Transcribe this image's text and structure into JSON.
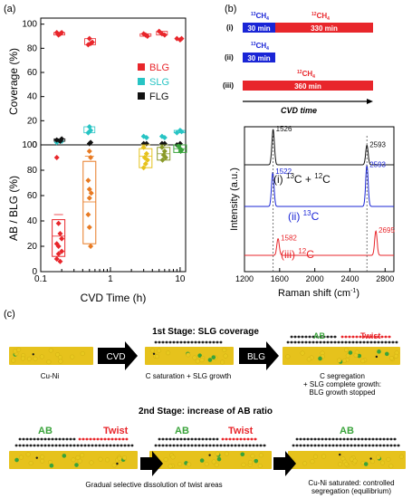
{
  "panel_labels": {
    "a": "(a)",
    "b": "(b)",
    "c": "(c)"
  },
  "colors": {
    "blg": "#e8262b",
    "slg": "#27c4c4",
    "flg": "#111111",
    "c13": "#1a25d6",
    "c12": "#e8262b",
    "gold": "#e6c21c",
    "green_dot": "#39a33a",
    "olive": "#8a9a2a"
  },
  "panel_a": {
    "xlabel": "CVD Time (h)",
    "ylabel_top": "Coverage (%)",
    "ylabel_bottom": "AB / BLG (%)",
    "legend": [
      {
        "label": "BLG",
        "color": "#e8262b"
      },
      {
        "label": "SLG",
        "color": "#27c4c4"
      },
      {
        "label": "FLG",
        "color": "#111111"
      }
    ],
    "xticks": [
      "0.1",
      "1",
      "10"
    ],
    "yticks_top": [
      "0",
      "20",
      "40",
      "60",
      "80",
      "100"
    ],
    "yticks_bottom": [
      "0",
      "20",
      "40",
      "60",
      "80",
      "100"
    ]
  },
  "panel_b": {
    "schedule": [
      {
        "row": "(i)",
        "segments": [
          {
            "label": "13CH4",
            "time": "30 min",
            "color": "#1a25d6"
          },
          {
            "label": "12CH4",
            "time": "330 min",
            "color": "#e8262b"
          }
        ]
      },
      {
        "row": "(ii)",
        "segments": [
          {
            "label": "13CH4",
            "time": "30 min",
            "color": "#1a25d6"
          }
        ]
      },
      {
        "row": "(iii)",
        "segments": [
          {
            "label": "12CH4",
            "time": "360 min",
            "color": "#e8262b"
          }
        ]
      }
    ],
    "arrow_label": "CVD time",
    "xlabel": "Raman shift (cm",
    "xlabel_sup": "-1",
    "xlabel_end": ")",
    "ylabel": "Intensity (a.u.)",
    "xticks": [
      "1200",
      "1600",
      "2000",
      "2400",
      "2800"
    ],
    "spectra": [
      {
        "label": "(i) ",
        "iso_a": "13",
        "mid": "C + ",
        "iso_b": "12",
        "tail": "C",
        "peaks": [
          "1526",
          "2593"
        ],
        "color": "#111111"
      },
      {
        "label": "(ii) ",
        "iso_a": "13",
        "mid": "C",
        "iso_b": "",
        "tail": "",
        "peaks": [
          "1522",
          "2593"
        ],
        "color": "#1a25d6"
      },
      {
        "label": "(iii) ",
        "iso_a": "12",
        "mid": "C",
        "iso_b": "",
        "tail": "",
        "peaks": [
          "1582",
          "2695"
        ],
        "color": "#e8262b"
      }
    ]
  },
  "panel_c": {
    "stage1_title": "1st Stage: SLG coverage",
    "stage2_title": "2nd Stage: increase of AB ratio",
    "arrow_cvd": "CVD",
    "arrow_blg": "BLG",
    "label_cuni": "Cu-Ni",
    "label_csat": "C saturation + SLG growth",
    "label_seg1": "C segregation",
    "label_seg2": "+ SLG complete growth:",
    "label_seg3": "BLG growth stopped",
    "ab": "AB",
    "twist": "Twist",
    "label_dissolve": "Gradual selective dissolution of twist areas",
    "label_sat1": "Cu-Ni saturated: controlled",
    "label_sat2": "segregation (equilibrium)"
  },
  "chart_data": [
    {
      "type": "scatter",
      "title": "",
      "xlabel": "CVD Time (h)",
      "ylabel": "Coverage (%)",
      "xscale": "log",
      "xlim": [
        0.1,
        12
      ],
      "ylim": [
        0,
        105
      ],
      "legend_position": "right",
      "series": [
        {
          "name": "BLG",
          "color": "#e8262b",
          "points": [
            [
              0.17,
              93
            ],
            [
              0.18,
              91
            ],
            [
              0.19,
              92
            ],
            [
              0.2,
              93
            ],
            [
              0.5,
              88
            ],
            [
              0.52,
              84
            ],
            [
              0.55,
              85
            ],
            [
              0.48,
              83
            ],
            [
              3,
              92
            ],
            [
              3.2,
              91
            ],
            [
              3.4,
              90
            ],
            [
              5,
              94
            ],
            [
              5.5,
              92
            ],
            [
              6,
              91
            ],
            [
              9,
              88
            ],
            [
              10,
              87
            ],
            [
              10.5,
              88
            ]
          ]
        },
        {
          "name": "SLG",
          "color": "#27c4c4",
          "points": [
            [
              0.17,
              2
            ],
            [
              0.2,
              3
            ],
            [
              0.5,
              15
            ],
            [
              0.52,
              12
            ],
            [
              0.48,
              10
            ],
            [
              3,
              7
            ],
            [
              3.3,
              6
            ],
            [
              5.5,
              7
            ],
            [
              6,
              6
            ],
            [
              9,
              10
            ],
            [
              10,
              12
            ],
            [
              10.5,
              11
            ]
          ]
        },
        {
          "name": "FLG",
          "color": "#111111",
          "points": [
            [
              0.17,
              4
            ],
            [
              0.19,
              3
            ],
            [
              0.2,
              5
            ],
            [
              0.5,
              1
            ],
            [
              0.52,
              2
            ],
            [
              3,
              1
            ],
            [
              3.3,
              1
            ],
            [
              5.5,
              1
            ],
            [
              6,
              1
            ],
            [
              9,
              0
            ],
            [
              10,
              1
            ]
          ]
        }
      ]
    },
    {
      "type": "scatter",
      "title": "",
      "xlabel": "CVD Time (h)",
      "ylabel": "AB / BLG (%)",
      "xscale": "log",
      "xlim": [
        0.1,
        12
      ],
      "ylim": [
        0,
        100
      ],
      "series": [
        {
          "name": "",
          "color": "#e8262b",
          "box": [
            12,
            28,
            41
          ],
          "x": 0.18,
          "points": [
            [
              0.17,
              90
            ],
            [
              0.18,
              38
            ],
            [
              0.19,
              30
            ],
            [
              0.17,
              22
            ],
            [
              0.18,
              20
            ],
            [
              0.2,
              16
            ],
            [
              0.18,
              14
            ],
            [
              0.17,
              10
            ],
            [
              0.19,
              8
            ],
            [
              0.2,
              26
            ]
          ]
        },
        {
          "name": "",
          "color": "#e87a22",
          "box": [
            22,
            55,
            87
          ],
          "x": 0.5,
          "points": [
            [
              0.5,
              95
            ],
            [
              0.52,
              90
            ],
            [
              0.48,
              72
            ],
            [
              0.5,
              65
            ],
            [
              0.53,
              62
            ],
            [
              0.5,
              58
            ],
            [
              0.48,
              45
            ],
            [
              0.5,
              35
            ],
            [
              0.52,
              20
            ]
          ]
        },
        {
          "name": "",
          "color": "#e6c21c",
          "box": [
            82,
            91,
            97
          ],
          "x": 3.2,
          "points": [
            [
              3,
              98
            ],
            [
              3.3,
              93
            ],
            [
              3.1,
              90
            ],
            [
              3.4,
              88
            ],
            [
              3.2,
              85
            ],
            [
              3,
              82
            ]
          ]
        },
        {
          "name": "",
          "color": "#8a9a2a",
          "box": [
            88,
            93,
            98
          ],
          "x": 5.8,
          "points": [
            [
              5.5,
              98
            ],
            [
              6,
              95
            ],
            [
              5.8,
              92
            ],
            [
              6.2,
              90
            ],
            [
              5.6,
              88
            ]
          ]
        },
        {
          "name": "",
          "color": "#39a33a",
          "box": [
            94,
            97,
            100
          ],
          "x": 10,
          "points": [
            [
              9.5,
              99
            ],
            [
              10,
              97
            ],
            [
              10.5,
              96
            ],
            [
              10.2,
              95
            ]
          ]
        }
      ]
    },
    {
      "type": "line",
      "title": "",
      "xlabel": "Raman shift (cm-1)",
      "ylabel": "Intensity (a.u.)",
      "xlim": [
        1200,
        2900
      ],
      "series": [
        {
          "name": "(i) 13C + 12C",
          "color": "#111111",
          "peaks": [
            [
              1526,
              1.0
            ],
            [
              2593,
              0.55
            ]
          ]
        },
        {
          "name": "(ii) 13C",
          "color": "#1a25d6",
          "peaks": [
            [
              1522,
              0.75
            ],
            [
              2593,
              0.9
            ]
          ]
        },
        {
          "name": "(iii) 12C",
          "color": "#e8262b",
          "peaks": [
            [
              1582,
              0.55
            ],
            [
              2695,
              0.8
            ]
          ]
        }
      ]
    }
  ]
}
